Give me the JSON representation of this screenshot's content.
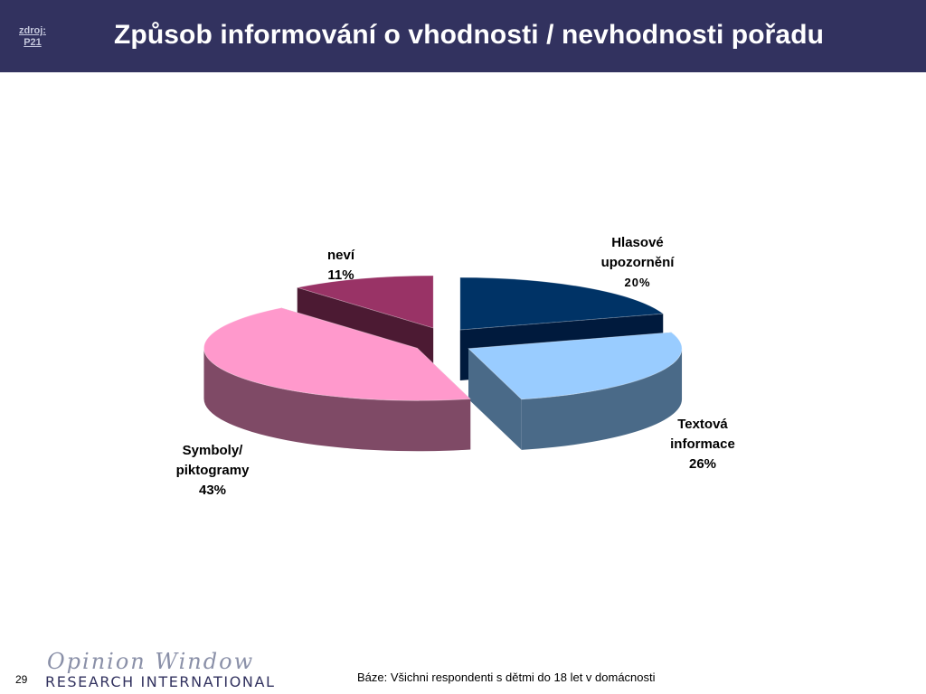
{
  "header": {
    "source_line1": "zdroj:",
    "source_line2": "P21",
    "title": "Způsob informování o vhodnosti / nevhodnosti pořadu"
  },
  "chart_data": {
    "type": "pie",
    "title": "",
    "slices": [
      {
        "label_line1": "Hlasové",
        "label_line2": "upozornění",
        "value": 20,
        "value_text": "20%",
        "color": "#003366",
        "side_color": "#001a3d"
      },
      {
        "label_line1": "Textová",
        "label_line2": "informace",
        "value": 26,
        "value_text": "26%",
        "color": "#99ccff",
        "side_color": "#4a6a88"
      },
      {
        "label_line1": "Symboly/",
        "label_line2": "piktogramy",
        "value": 43,
        "value_text": "43%",
        "color": "#ff99cc",
        "side_color": "#7f4a66"
      },
      {
        "label_line1": "neví",
        "label_line2": "",
        "value": 11,
        "value_text": "11%",
        "color": "#993366",
        "side_color": "#4c1a33"
      }
    ]
  },
  "footer": {
    "page_number": "29",
    "logo_top": "Opinion Window",
    "logo_bottom": "RESEARCH INTERNATIONAL",
    "base_note": "Báze: Všichni respondenti s dětmi do 18 let v domácnosti"
  }
}
